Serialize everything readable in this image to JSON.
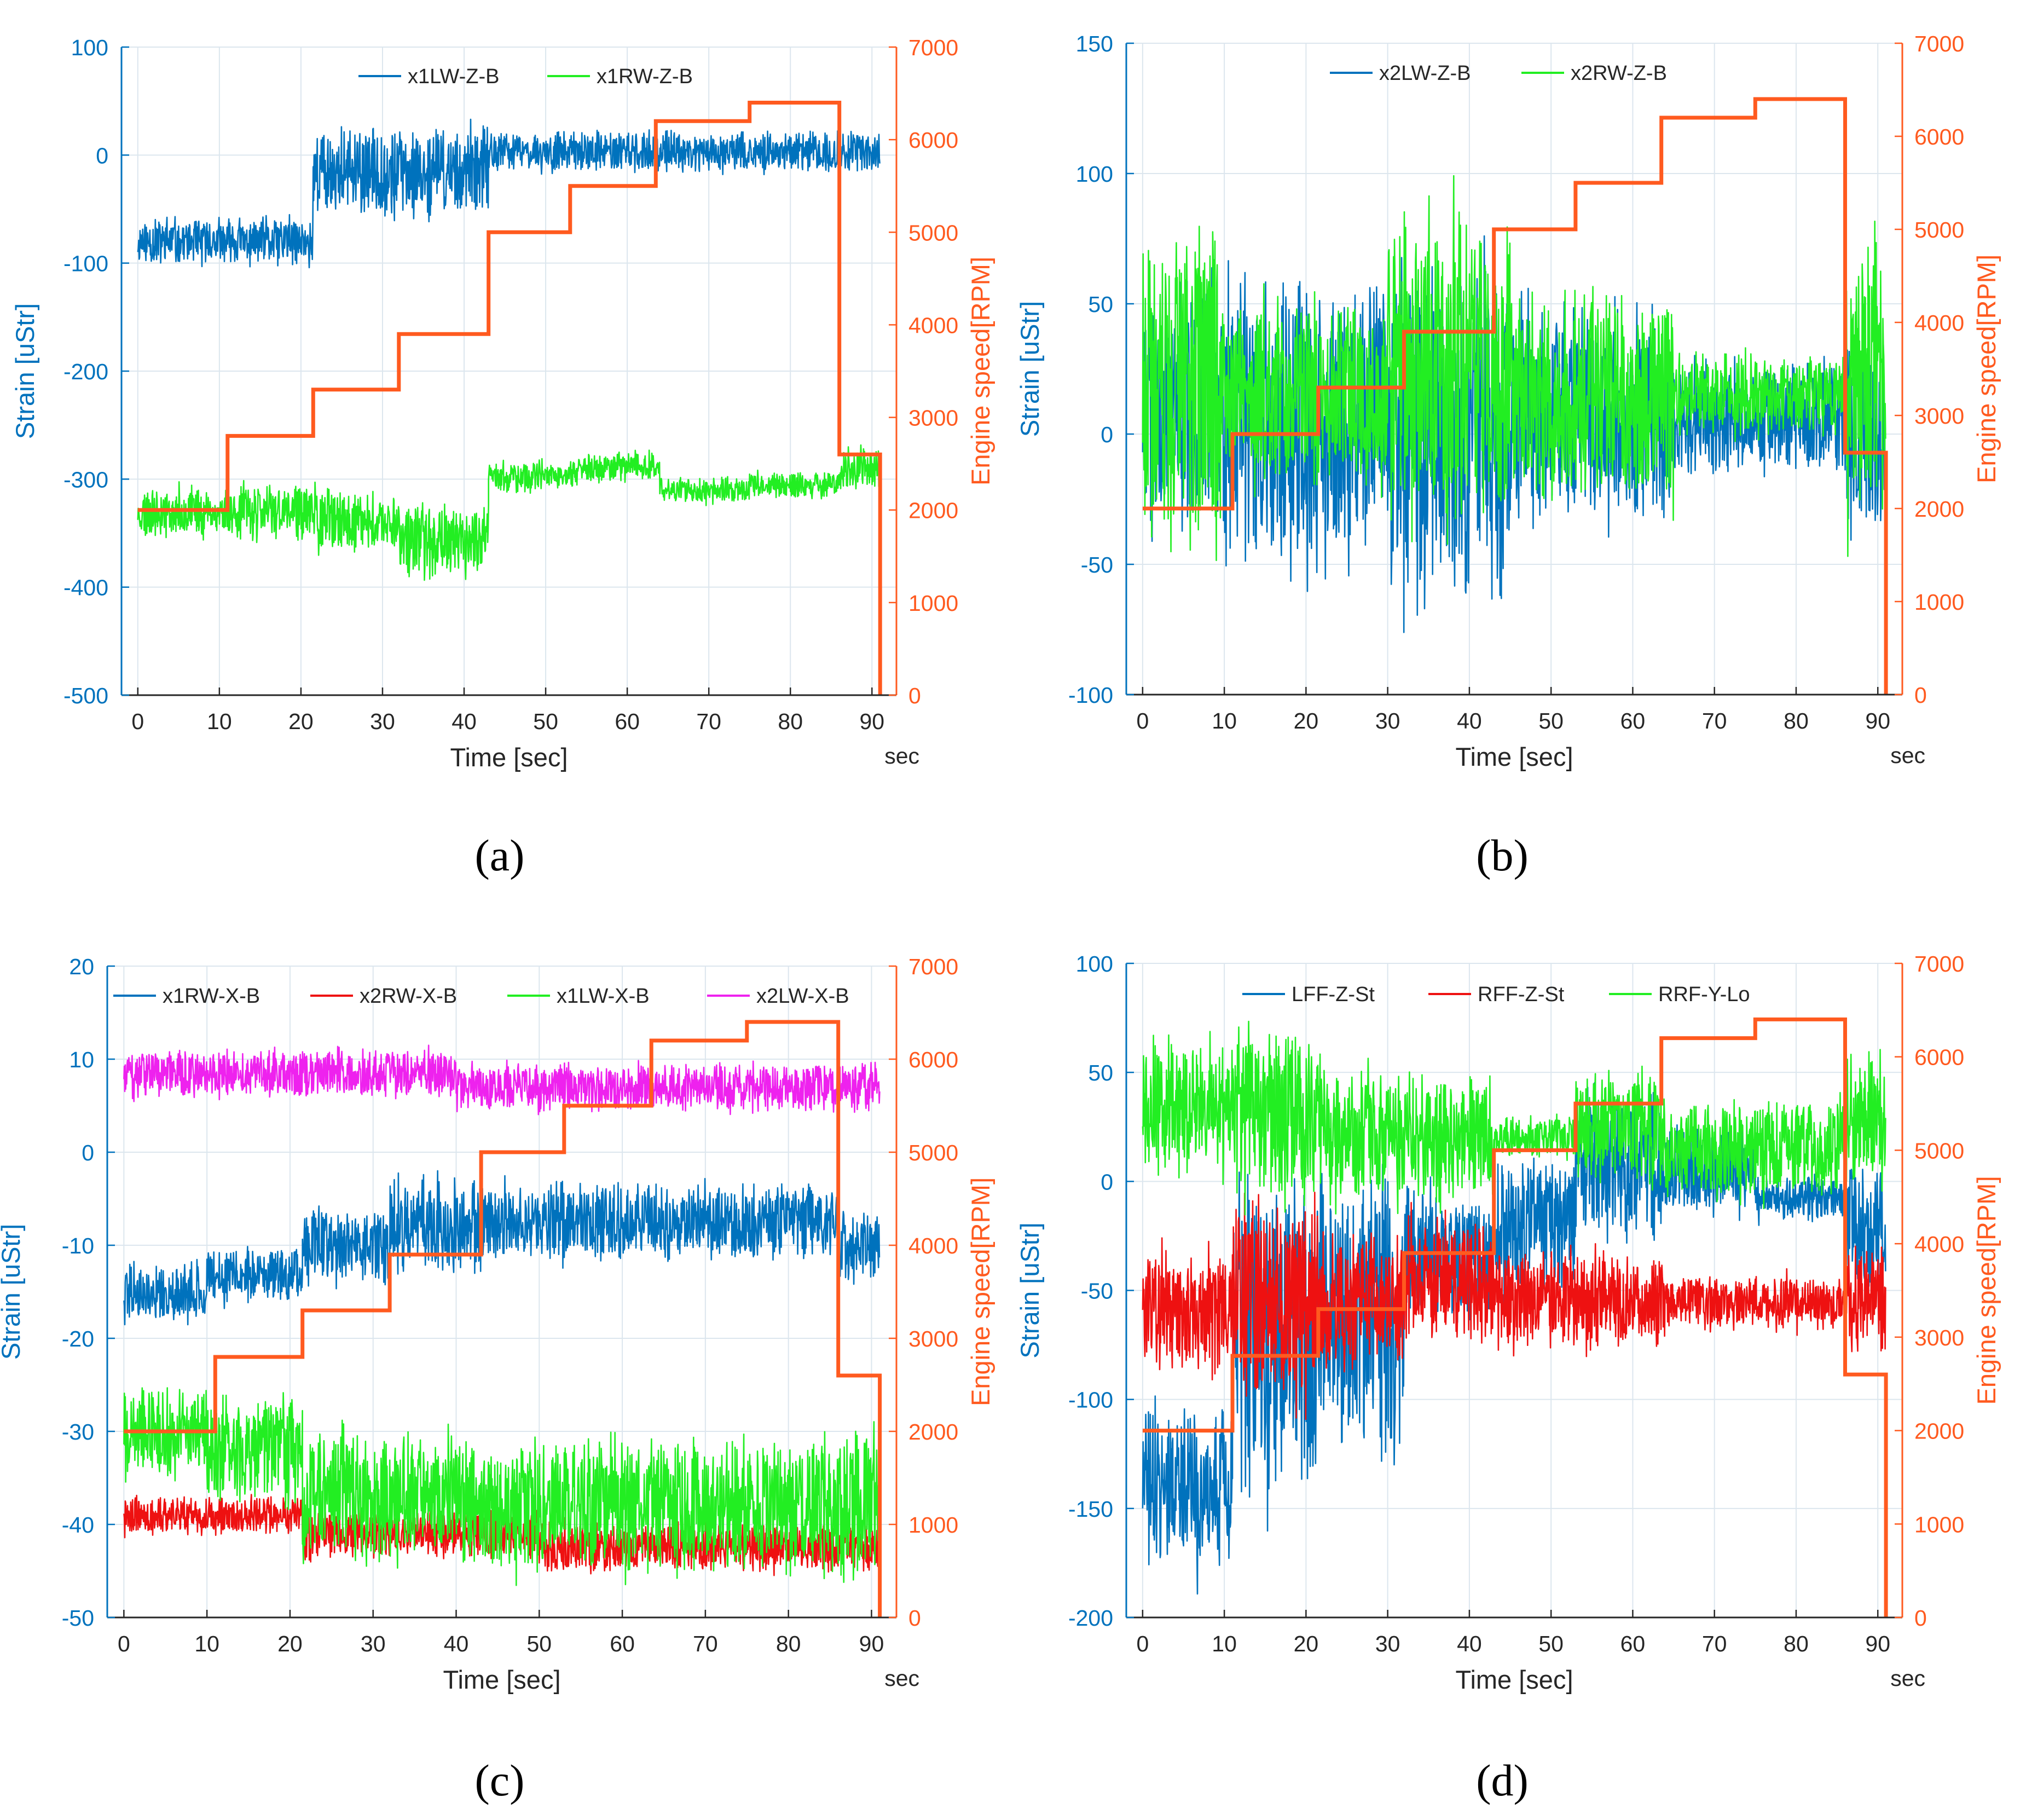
{
  "figure": {
    "colors": {
      "strain_axis": "#0072BD",
      "speed_axis": "#FF5A1F",
      "grid": "#DCE6EE",
      "text": "#262626"
    }
  },
  "chart_data": [
    {
      "panel_label": "(a)",
      "type": "line",
      "xlabel": "Time [sec]",
      "xunit": "sec",
      "ylabel": "Strain [uStr]",
      "y2label": "Engine speed[RPM]",
      "xlim": [
        -2,
        93
      ],
      "ylim": [
        -500,
        100
      ],
      "y2lim": [
        0,
        7000
      ],
      "xticks": [
        0,
        10,
        20,
        30,
        40,
        50,
        60,
        70,
        80,
        90
      ],
      "yticks": [
        -500,
        -400,
        -300,
        -200,
        -100,
        0,
        100
      ],
      "y2ticks": [
        0,
        1000,
        2000,
        3000,
        4000,
        5000,
        6000,
        7000
      ],
      "grid": true,
      "legend_position": "top-center",
      "series": [
        {
          "name": "x1LW-Z-B",
          "color": "#0072BD",
          "axis": "left",
          "segments": [
            [
              0,
              21.5,
              -80,
              22
            ],
            [
              21.5,
              43,
              -15,
              40
            ],
            [
              43,
              91,
              3,
              18
            ]
          ]
        },
        {
          "name": "x1RW-Z-B",
          "color": "#22EE22",
          "axis": "left",
          "segments": [
            [
              0,
              11,
              -330,
              22
            ],
            [
              11,
              22,
              -330,
              26
            ],
            [
              22,
              32,
              -340,
              28
            ],
            [
              32,
              43,
              -355,
              34
            ],
            [
              43,
              54,
              -298,
              14
            ],
            [
              54,
              64,
              -288,
              14
            ],
            [
              64,
              75,
              -310,
              12
            ],
            [
              75,
              86,
              -305,
              12
            ],
            [
              86,
              91,
              -290,
              20
            ]
          ]
        }
      ],
      "speed": {
        "name": "Engine speed",
        "color": "#FF5A1F",
        "times": [
          0,
          11,
          21.5,
          32,
          43,
          53,
          63.5,
          75,
          86,
          91,
          91
        ],
        "rpm": [
          2000,
          2800,
          3300,
          3900,
          5000,
          5500,
          6200,
          6400,
          2600,
          2600,
          0
        ]
      }
    },
    {
      "panel_label": "(b)",
      "type": "line",
      "xlabel": "Time [sec]",
      "xunit": "sec",
      "ylabel": "Strain [uStr]",
      "y2label": "Engine speed[RPM]",
      "xlim": [
        -2,
        93
      ],
      "ylim": [
        -100,
        150
      ],
      "y2lim": [
        0,
        7000
      ],
      "xticks": [
        0,
        10,
        20,
        30,
        40,
        50,
        60,
        70,
        80,
        90
      ],
      "yticks": [
        -100,
        -50,
        0,
        50,
        100,
        150
      ],
      "y2ticks": [
        0,
        1000,
        2000,
        3000,
        4000,
        5000,
        6000,
        7000
      ],
      "grid": true,
      "legend_position": "top-center",
      "series": [
        {
          "name": "x2LW-Z-B",
          "color": "#0072BD",
          "axis": "left",
          "segments": [
            [
              0,
              10,
              10,
              45
            ],
            [
              10,
              30,
              5,
              55
            ],
            [
              30,
              45,
              0,
              65
            ],
            [
              45,
              65,
              5,
              40
            ],
            [
              65,
              86,
              5,
              22
            ],
            [
              86,
              91,
              0,
              40
            ]
          ]
        },
        {
          "name": "x2RW-Z-B",
          "color": "#22EE22",
          "axis": "left",
          "segments": [
            [
              0,
              10,
              20,
              60
            ],
            [
              10,
              30,
              15,
              35
            ],
            [
              30,
              45,
              25,
              60
            ],
            [
              45,
              65,
              15,
              40
            ],
            [
              65,
              86,
              15,
              15
            ],
            [
              86,
              91,
              15,
              55
            ]
          ]
        }
      ],
      "speed": {
        "name": "Engine speed",
        "color": "#FF5A1F",
        "times": [
          0,
          11,
          21.5,
          32,
          43,
          53,
          63.5,
          75,
          86,
          91,
          91
        ],
        "rpm": [
          2000,
          2800,
          3300,
          3900,
          5000,
          5500,
          6200,
          6400,
          2600,
          2600,
          0
        ]
      }
    },
    {
      "panel_label": "(c)",
      "type": "line",
      "xlabel": "Time [sec]",
      "xunit": "sec",
      "ylabel": "Strain [uStr]",
      "y2label": "Engine speed[RPM]",
      "xlim": [
        -2,
        93
      ],
      "ylim": [
        -50,
        20
      ],
      "y2lim": [
        0,
        7000
      ],
      "xticks": [
        0,
        10,
        20,
        30,
        40,
        50,
        60,
        70,
        80,
        90
      ],
      "yticks": [
        -50,
        -40,
        -30,
        -20,
        -10,
        0,
        10,
        20
      ],
      "y2ticks": [
        0,
        1000,
        2000,
        3000,
        4000,
        5000,
        6000,
        7000
      ],
      "grid": true,
      "legend_position": "top",
      "series": [
        {
          "name": "x1RW-X-B",
          "color": "#0072BD",
          "axis": "left",
          "segments": [
            [
              0,
              10,
              -15,
              3
            ],
            [
              10,
              21.5,
              -13,
              3
            ],
            [
              21.5,
              32,
              -10,
              4
            ],
            [
              32,
              43,
              -8,
              5
            ],
            [
              43,
              86,
              -7.5,
              4
            ],
            [
              86,
              91,
              -10,
              4
            ]
          ]
        },
        {
          "name": "x2RW-X-B",
          "color": "#EE1111",
          "axis": "left",
          "segments": [
            [
              0,
              21.5,
              -39,
              2
            ],
            [
              21.5,
              50,
              -41,
              2.5
            ],
            [
              50,
              91,
              -42.5,
              2.5
            ]
          ]
        },
        {
          "name": "x1LW-X-B",
          "color": "#22EE22",
          "axis": "left",
          "segments": [
            [
              0,
              10,
              -30,
              5
            ],
            [
              10,
              21.5,
              -32,
              6
            ],
            [
              21.5,
              43,
              -37,
              7
            ],
            [
              43,
              86,
              -38,
              7
            ],
            [
              86,
              91,
              -38,
              8
            ]
          ]
        },
        {
          "name": "x2LW-X-B",
          "color": "#EE22EE",
          "axis": "left",
          "segments": [
            [
              0,
              40,
              8.5,
              2.5
            ],
            [
              40,
              91,
              7,
              2.5
            ]
          ]
        }
      ],
      "speed": {
        "name": "Engine speed",
        "color": "#FF5A1F",
        "times": [
          0,
          11,
          21.5,
          32,
          43,
          53,
          63.5,
          75,
          86,
          91,
          91
        ],
        "rpm": [
          2000,
          2800,
          3300,
          3900,
          5000,
          5500,
          6200,
          6400,
          2600,
          2600,
          0
        ]
      }
    },
    {
      "panel_label": "(d)",
      "type": "line",
      "xlabel": "Time [sec]",
      "xunit": "sec",
      "ylabel": "Strain [uStr]",
      "y2label": "Engine speed[RPM]",
      "xlim": [
        -2,
        93
      ],
      "ylim": [
        -200,
        100
      ],
      "y2lim": [
        0,
        7000
      ],
      "xticks": [
        0,
        10,
        20,
        30,
        40,
        50,
        60,
        70,
        80,
        90
      ],
      "yticks": [
        -200,
        -150,
        -100,
        -50,
        0,
        50,
        100
      ],
      "y2ticks": [
        0,
        1000,
        2000,
        3000,
        4000,
        5000,
        6000,
        7000
      ],
      "grid": true,
      "legend_position": "top-center",
      "series": [
        {
          "name": "LFF-Z-St",
          "color": "#0072BD",
          "axis": "left",
          "segments": [
            [
              0,
              11,
              -140,
              40
            ],
            [
              11,
              21.5,
              -70,
              70
            ],
            [
              21.5,
              32,
              -60,
              60
            ],
            [
              32,
              43,
              -35,
              30
            ],
            [
              43,
              53,
              -20,
              30
            ],
            [
              53,
              63.5,
              10,
              35
            ],
            [
              63.5,
              75,
              5,
              20
            ],
            [
              75,
              86,
              -8,
              10
            ],
            [
              86,
              91,
              -20,
              30
            ]
          ]
        },
        {
          "name": "RFF-Z-St",
          "color": "#EE1111",
          "axis": "left",
          "segments": [
            [
              0,
              11,
              -60,
              28
            ],
            [
              11,
              21.5,
              -55,
              45
            ],
            [
              21.5,
              32,
              -55,
              30
            ],
            [
              32,
              43,
              -45,
              30
            ],
            [
              43,
              64,
              -55,
              22
            ],
            [
              64,
              86,
              -55,
              12
            ],
            [
              86,
              91,
              -55,
              25
            ]
          ]
        },
        {
          "name": "RRF-Y-Lo",
          "color": "#22EE22",
          "axis": "left",
          "segments": [
            [
              0,
              11,
              35,
              30
            ],
            [
              11,
              21.5,
              30,
              40
            ],
            [
              21.5,
              43,
              20,
              30
            ],
            [
              43,
              53,
              20,
              10
            ],
            [
              53,
              63.5,
              25,
              25
            ],
            [
              63.5,
              86,
              15,
              22
            ],
            [
              86,
              91,
              30,
              30
            ]
          ]
        }
      ],
      "speed": {
        "name": "Engine speed",
        "color": "#FF5A1F",
        "times": [
          0,
          11,
          21.5,
          32,
          43,
          53,
          63.5,
          75,
          86,
          91,
          91
        ],
        "rpm": [
          2000,
          2800,
          3300,
          3900,
          5000,
          5500,
          6200,
          6400,
          2600,
          2600,
          0
        ]
      }
    }
  ]
}
